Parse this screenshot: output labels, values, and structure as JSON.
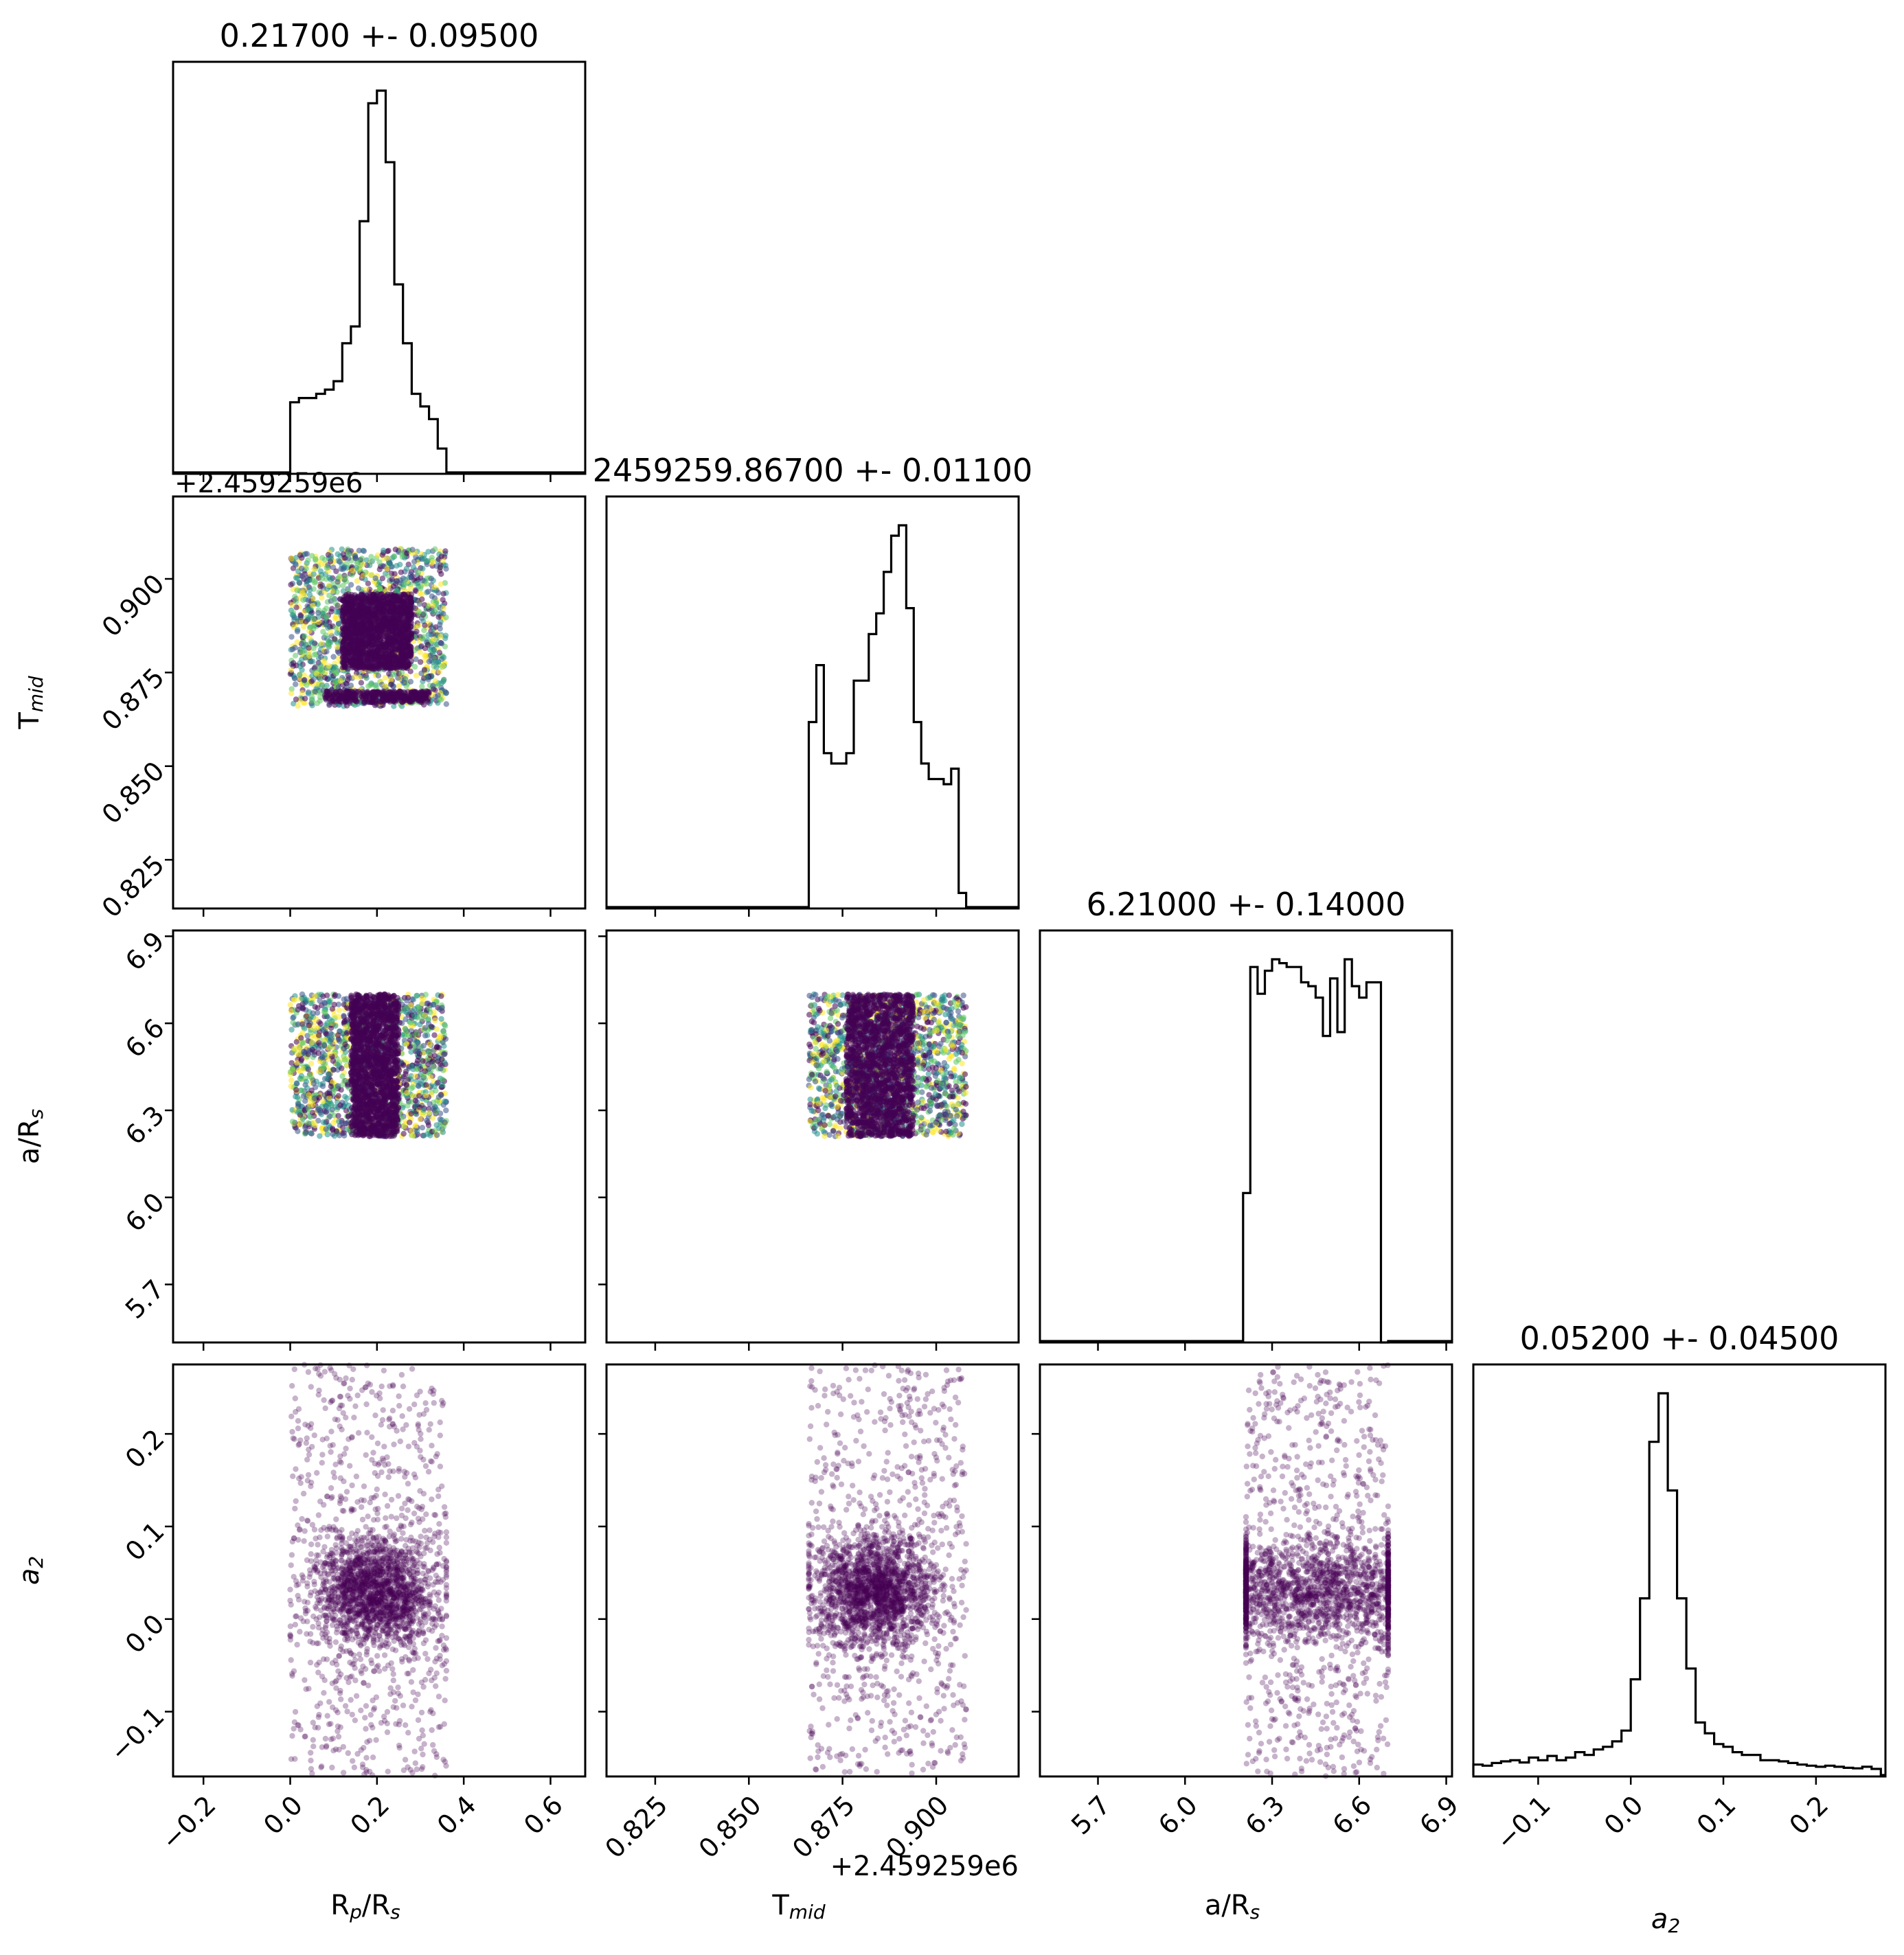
{
  "chart_data": {
    "type": "scatter",
    "subtype": "corner-plot",
    "parameters": [
      {
        "id": "rp",
        "label_main": "R",
        "label_sub": "p",
        "label_rest": "/R",
        "label_sub2": "s",
        "title": "0.21700 +- 0.09500",
        "range": [
          -0.27,
          0.68
        ],
        "ticks": [
          -0.2,
          0.0,
          0.2,
          0.4,
          0.6
        ],
        "tick_labels": [
          "−0.2",
          "0.0",
          "0.2",
          "0.4",
          "0.6"
        ],
        "offset_text": "",
        "hist": {
          "edges": [
            0.0,
            0.02,
            0.04,
            0.06,
            0.08,
            0.1,
            0.12,
            0.14,
            0.16,
            0.18,
            0.2,
            0.22,
            0.24,
            0.26,
            0.28,
            0.3,
            0.32,
            0.34,
            0.36
          ],
          "values": [
            0.17,
            0.18,
            0.18,
            0.19,
            0.2,
            0.22,
            0.31,
            0.35,
            0.6,
            0.88,
            0.91,
            0.74,
            0.45,
            0.31,
            0.19,
            0.16,
            0.13,
            0.06
          ]
        }
      },
      {
        "id": "tmid",
        "label_main": "T",
        "label_sub": "mid",
        "label_rest": "",
        "label_sub2": "",
        "title": "2459259.86700 +- 0.01100",
        "range": [
          0.812,
          0.922
        ],
        "ticks": [
          0.825,
          0.85,
          0.875,
          0.9
        ],
        "tick_labels": [
          "0.825",
          "0.850",
          "0.875",
          "0.900"
        ],
        "offset_text": "+2.459259e6",
        "hist": {
          "edges": [
            0.866,
            0.868,
            0.87,
            0.872,
            0.874,
            0.876,
            0.878,
            0.88,
            0.882,
            0.884,
            0.886,
            0.888,
            0.89,
            0.892,
            0.894,
            0.896,
            0.898,
            0.9,
            0.902,
            0.904,
            0.906,
            0.908
          ],
          "values": [
            0.36,
            0.47,
            0.3,
            0.28,
            0.28,
            0.3,
            0.44,
            0.44,
            0.53,
            0.57,
            0.65,
            0.72,
            0.74,
            0.58,
            0.36,
            0.28,
            0.25,
            0.25,
            0.24,
            0.27,
            0.03
          ]
        }
      },
      {
        "id": "ars",
        "label_main": "a/R",
        "label_sub": "s",
        "label_rest": "",
        "label_sub2": "",
        "title": "6.21000 +- 0.14000",
        "range": [
          5.5,
          6.92
        ],
        "ticks": [
          5.7,
          6.0,
          6.3,
          6.6,
          6.9
        ],
        "tick_labels": [
          "5.7",
          "6.0",
          "6.3",
          "6.6",
          "6.9"
        ],
        "offset_text": "",
        "hist": {
          "edges": [
            6.2,
            6.225,
            6.25,
            6.275,
            6.3,
            6.325,
            6.35,
            6.375,
            6.4,
            6.425,
            6.45,
            6.475,
            6.5,
            6.525,
            6.55,
            6.575,
            6.6,
            6.625,
            6.65,
            6.675,
            6.7
          ],
          "values": [
            0.39,
            0.98,
            0.91,
            0.97,
            1.0,
            0.99,
            0.98,
            0.98,
            0.94,
            0.93,
            0.9,
            0.8,
            0.95,
            0.81,
            1.0,
            0.93,
            0.9,
            0.94,
            0.94,
            0.0
          ]
        }
      },
      {
        "id": "a2",
        "label_main": "a",
        "label_sub": "2",
        "label_rest": "",
        "label_sub2": "",
        "italic": true,
        "title": "0.05200 +- 0.04500",
        "range": [
          -0.17,
          0.275
        ],
        "ticks": [
          -0.1,
          0.0,
          0.1,
          0.2
        ],
        "tick_labels": [
          "−0.1",
          "0.0",
          "0.1",
          "0.2"
        ],
        "offset_text": "",
        "hist": {
          "edges": [
            -0.17,
            -0.16,
            -0.15,
            -0.14,
            -0.13,
            -0.12,
            -0.11,
            -0.1,
            -0.09,
            -0.08,
            -0.07,
            -0.06,
            -0.05,
            -0.04,
            -0.03,
            -0.02,
            -0.01,
            0.0,
            0.01,
            0.02,
            0.03,
            0.04,
            0.05,
            0.06,
            0.07,
            0.08,
            0.09,
            0.1,
            0.11,
            0.12,
            0.13,
            0.14,
            0.15,
            0.16,
            0.17,
            0.18,
            0.19,
            0.2,
            0.21,
            0.22,
            0.23,
            0.24,
            0.25,
            0.26,
            0.27
          ],
          "values": [
            0.022,
            0.02,
            0.025,
            0.028,
            0.03,
            0.026,
            0.035,
            0.03,
            0.038,
            0.03,
            0.035,
            0.045,
            0.04,
            0.05,
            0.055,
            0.065,
            0.085,
            0.18,
            0.33,
            0.62,
            0.71,
            0.53,
            0.33,
            0.2,
            0.1,
            0.08,
            0.06,
            0.055,
            0.045,
            0.04,
            0.04,
            0.03,
            0.03,
            0.028,
            0.025,
            0.022,
            0.02,
            0.018,
            0.02,
            0.018,
            0.016,
            0.015,
            0.018,
            0.014
          ]
        }
      }
    ],
    "scatter": {
      "marker_color": "#440154",
      "colormap": "viridis",
      "pairs": [
        {
          "x": "rp",
          "y": "tmid",
          "x_box": [
            0.0,
            0.36
          ],
          "y_box": [
            0.866,
            0.908
          ],
          "core_x": [
            0.12,
            0.28
          ],
          "core_y": [
            0.876,
            0.896
          ],
          "ridge_y": 0.867,
          "alpha": 0.55
        },
        {
          "x": "rp",
          "y": "ars",
          "x_box": [
            0.0,
            0.36
          ],
          "y_box": [
            6.21,
            6.7
          ],
          "core_x": [
            0.14,
            0.25
          ],
          "core_y": [
            6.21,
            6.7
          ],
          "alpha": 0.55
        },
        {
          "x": "tmid",
          "y": "ars",
          "x_box": [
            0.866,
            0.908
          ],
          "y_box": [
            6.21,
            6.7
          ],
          "core_x": [
            0.876,
            0.894
          ],
          "core_y": [
            6.21,
            6.7
          ],
          "alpha": 0.55
        },
        {
          "x": "rp",
          "y": "a2",
          "x_box": [
            0.0,
            0.36
          ],
          "y_box": [
            -0.17,
            0.275
          ],
          "center": [
            0.2,
            0.03
          ],
          "spread": [
            0.07,
            0.03
          ],
          "alpha": 0.3
        },
        {
          "x": "tmid",
          "y": "a2",
          "x_box": [
            0.866,
            0.908
          ],
          "y_box": [
            -0.17,
            0.275
          ],
          "center": [
            0.884,
            0.03
          ],
          "spread": [
            0.008,
            0.03
          ],
          "alpha": 0.3
        },
        {
          "x": "ars",
          "y": "a2",
          "x_box": [
            6.21,
            6.7
          ],
          "y_box": [
            -0.17,
            0.275
          ],
          "center": [
            6.45,
            0.03
          ],
          "spread": [
            0.25,
            0.028
          ],
          "alpha": 0.3
        }
      ]
    },
    "grid": false
  }
}
